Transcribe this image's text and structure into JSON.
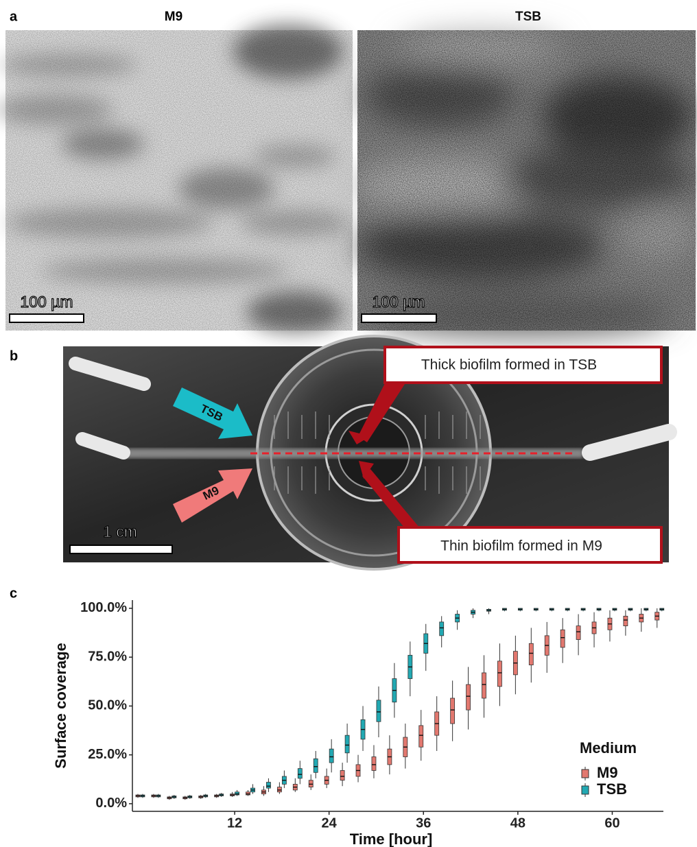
{
  "panel_a": {
    "label": "a",
    "left_title": "M9",
    "right_title": "TSB",
    "left_scale": "100 µm",
    "right_scale": "100 µm"
  },
  "panel_b": {
    "label": "b",
    "tsb_arrow": "TSB",
    "m9_arrow": "M9",
    "scale": "1 cm",
    "callout_top": "Thick biofilm formed in TSB",
    "callout_bottom": "Thin biofilm formed in M9"
  },
  "panel_c": {
    "label": "c"
  },
  "chart_data": {
    "type": "box",
    "x_label": "Time [hour]",
    "y_label": "Surface coverage",
    "legend_title": "Medium",
    "legend_position": "lower-right",
    "xlim": [
      -1,
      66.5
    ],
    "xticks": [
      12,
      24,
      36,
      48,
      60
    ],
    "ylim": [
      -3.9,
      104.2
    ],
    "yticks": [
      {
        "value": 0,
        "label": "0.0%"
      },
      {
        "value": 25,
        "label": "25.0%"
      },
      {
        "value": 50,
        "label": "50.0%"
      },
      {
        "value": 75,
        "label": "75.0%"
      },
      {
        "value": 100,
        "label": "100.0%"
      }
    ],
    "x": [
      0,
      2,
      4,
      6,
      8,
      10,
      12,
      14,
      16,
      18,
      20,
      22,
      24,
      26,
      28,
      30,
      32,
      34,
      36,
      38,
      40,
      42,
      44,
      46,
      48,
      50,
      52,
      54,
      56,
      58,
      60,
      62,
      64,
      66
    ],
    "series": [
      {
        "name": "M9",
        "color": "#e2786f",
        "min": [
          3,
          3,
          2,
          2,
          2.5,
          3,
          3.5,
          4,
          4,
          5,
          6,
          7,
          8,
          9,
          11,
          13,
          15,
          18,
          22,
          27,
          32,
          38,
          44,
          50,
          56,
          62,
          67,
          72,
          76,
          80,
          83,
          86,
          88,
          90
        ],
        "q1": [
          3.5,
          3.5,
          2.5,
          2.5,
          3,
          3.5,
          4,
          4.5,
          5,
          6,
          7,
          8.5,
          10,
          12,
          14,
          17,
          20,
          24,
          29,
          35,
          41,
          48,
          54,
          60,
          66,
          71,
          76,
          80,
          84,
          87,
          89,
          91,
          93,
          94
        ],
        "median": [
          4,
          4,
          3,
          3,
          3.5,
          4,
          4.5,
          5,
          6,
          7,
          8.5,
          10,
          12,
          14,
          17,
          20,
          24,
          29,
          35,
          41,
          48,
          55,
          61,
          67,
          72,
          77,
          81,
          85,
          88,
          90,
          92,
          94,
          95,
          96
        ],
        "q3": [
          4.5,
          4.5,
          3.5,
          3.5,
          4,
          4.5,
          5,
          6,
          7,
          8.5,
          10,
          12,
          14,
          17,
          20,
          24,
          28,
          34,
          40,
          47,
          54,
          61,
          67,
          73,
          78,
          82,
          86,
          89,
          91,
          93,
          95,
          96,
          97,
          98
        ],
        "max": [
          5,
          5,
          4,
          4,
          4.5,
          5,
          6,
          7,
          9,
          11,
          13,
          15,
          18,
          21,
          25,
          30,
          35,
          41,
          48,
          55,
          63,
          70,
          76,
          82,
          86,
          90,
          93,
          95,
          97,
          98,
          99,
          99,
          100,
          100
        ]
      },
      {
        "name": "TSB",
        "color": "#22a9b3",
        "min": [
          3,
          3,
          2.5,
          2.5,
          3,
          3.5,
          4,
          5,
          6,
          8,
          10,
          13,
          16,
          21,
          27,
          34,
          44,
          55,
          68,
          80,
          89,
          95,
          97,
          98.5,
          98.5,
          98.5,
          98.5,
          98.5,
          98.5,
          98.5,
          98.5,
          98.5,
          98.5,
          98.5
        ],
        "q1": [
          3.5,
          3.5,
          3,
          3,
          3.5,
          4,
          4.5,
          6,
          8,
          10,
          13,
          16,
          21,
          26,
          33,
          42,
          52,
          64,
          77,
          86,
          93,
          97,
          98.5,
          99,
          99,
          99,
          99,
          99,
          99,
          99,
          99,
          99,
          99,
          99
        ],
        "median": [
          4,
          4,
          3.5,
          3.5,
          4,
          4.5,
          5,
          7,
          9,
          12,
          15,
          19,
          24,
          30,
          38,
          47,
          58,
          70,
          82,
          90,
          95,
          98,
          99,
          99.5,
          99.5,
          99.5,
          99.5,
          99.5,
          99.5,
          99.5,
          99.5,
          99.5,
          99.5,
          99.5
        ],
        "q3": [
          4.5,
          4.5,
          4,
          4,
          4.5,
          5,
          6,
          8,
          11,
          14,
          18,
          23,
          28,
          35,
          43,
          53,
          64,
          76,
          87,
          93,
          97,
          99,
          99.5,
          100,
          100,
          100,
          100,
          100,
          100,
          100,
          100,
          100,
          100,
          100
        ],
        "max": [
          5,
          5,
          4.5,
          4.5,
          5,
          5.5,
          7,
          10,
          13,
          17,
          22,
          27,
          33,
          41,
          50,
          60,
          72,
          83,
          92,
          96,
          99,
          100,
          100,
          100,
          100,
          100,
          100,
          100,
          100,
          100,
          100,
          100,
          100,
          100
        ]
      }
    ]
  }
}
